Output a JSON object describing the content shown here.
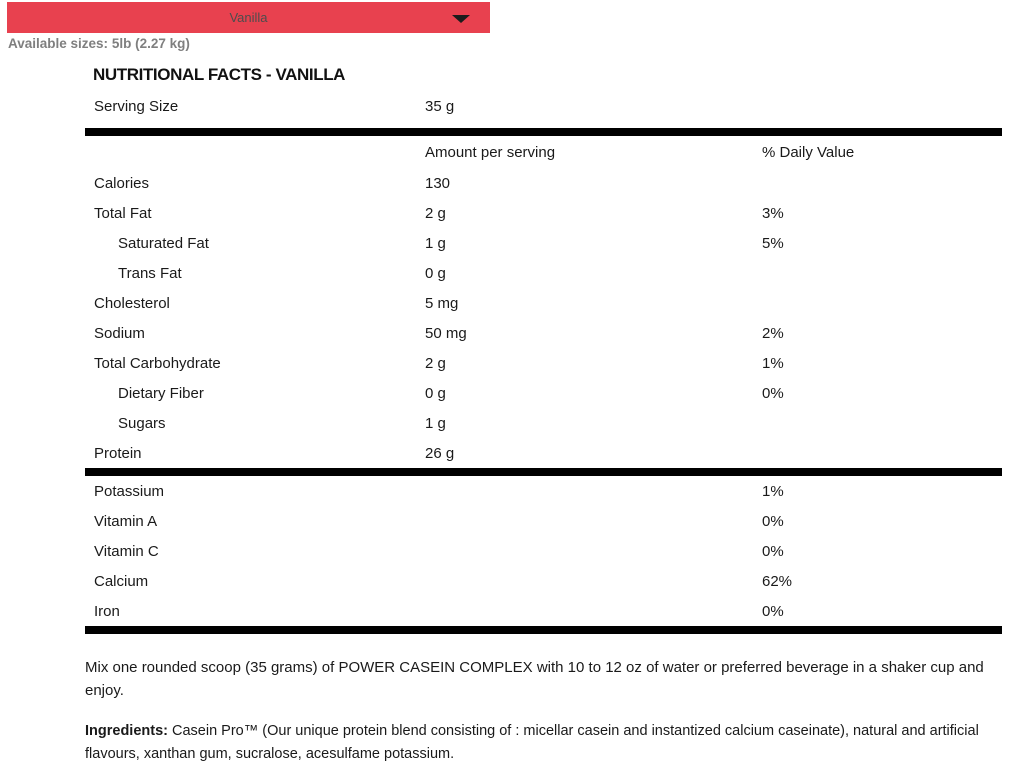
{
  "dropdown": {
    "selected": "Vanilla"
  },
  "icons": {
    "dropdown_arrow": "chevron-down-icon"
  },
  "sizes": {
    "label": "Available sizes:",
    "value": "5lb (2.27 kg)"
  },
  "nutrition": {
    "title": "NUTRITIONAL FACTS - VANILLA",
    "serving": {
      "label": "Serving Size",
      "value": "35 g"
    },
    "columns": {
      "amount": "Amount per serving",
      "daily_value": "% Daily Value"
    },
    "rows": [
      {
        "label": "Calories",
        "amount": "130",
        "dv": "",
        "indent": false
      },
      {
        "label": "Total Fat",
        "amount": "2 g",
        "dv": "3%",
        "indent": false
      },
      {
        "label": "Saturated Fat",
        "amount": "1 g",
        "dv": "5%",
        "indent": true
      },
      {
        "label": "Trans Fat",
        "amount": "0 g",
        "dv": "",
        "indent": true
      },
      {
        "label": "Cholesterol",
        "amount": "5 mg",
        "dv": "",
        "indent": false
      },
      {
        "label": "Sodium",
        "amount": "50 mg",
        "dv": "2%",
        "indent": false
      },
      {
        "label": "Total Carbohydrate",
        "amount": "2 g",
        "dv": "1%",
        "indent": false
      },
      {
        "label": "Dietary Fiber",
        "amount": "0 g",
        "dv": "0%",
        "indent": true
      },
      {
        "label": "Sugars",
        "amount": "1 g",
        "dv": "",
        "indent": true
      },
      {
        "label": "Protein",
        "amount": "26 g",
        "dv": "",
        "indent": false
      }
    ],
    "micronutrients": [
      {
        "label": "Potassium",
        "amount": "",
        "dv": "1%",
        "indent": false
      },
      {
        "label": "Vitamin A",
        "amount": "",
        "dv": "0%",
        "indent": false
      },
      {
        "label": "Vitamin C",
        "amount": "",
        "dv": "0%",
        "indent": false
      },
      {
        "label": "Calcium",
        "amount": "",
        "dv": "62%",
        "indent": false
      },
      {
        "label": "Iron",
        "amount": "",
        "dv": "0%",
        "indent": false
      }
    ]
  },
  "directions": "Mix one rounded scoop (35 grams) of POWER CASEIN COMPLEX with 10 to 12 oz of water or preferred beverage in a shaker cup and enjoy.",
  "ingredients": {
    "label": "Ingredients:",
    "text": " Casein Pro™ (Our unique protein blend consisting of : micellar casein and instantized calcium caseinate), natural and artificial flavours, xanthan gum, sucralose, acesulfame potassium."
  },
  "colors": {
    "accent_red": "#e8414f",
    "muted_gray": "#7f7f7f",
    "text_black": "#1a1a1a",
    "bar_black": "#000000"
  }
}
